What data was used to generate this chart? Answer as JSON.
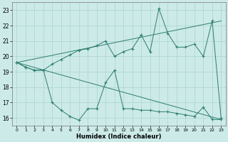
{
  "xlabel": "Humidex (Indice chaleur)",
  "line_color": "#2d7d6e",
  "bg_color": "#cceae8",
  "grid_color": "#aad4d0",
  "series_upper": {
    "x": [
      0,
      1,
      2,
      3,
      4,
      5,
      6,
      7,
      8,
      9,
      10,
      11,
      12,
      13,
      14,
      15,
      16,
      17,
      18,
      19,
      20,
      21,
      22,
      23
    ],
    "y": [
      19.6,
      19.3,
      19.1,
      19.1,
      19.5,
      19.8,
      20.1,
      20.4,
      20.5,
      20.7,
      21.0,
      20.0,
      20.3,
      20.5,
      21.4,
      20.3,
      23.1,
      21.5,
      20.6,
      20.6,
      20.8,
      20.0,
      22.3,
      16.0
    ]
  },
  "series_lower": {
    "x": [
      0,
      1,
      2,
      3,
      4,
      5,
      6,
      7,
      8,
      9,
      10,
      11,
      12,
      13,
      14,
      15,
      16,
      17,
      18,
      19,
      20,
      21,
      22,
      23
    ],
    "y": [
      19.6,
      19.3,
      19.1,
      19.1,
      17.0,
      16.5,
      16.1,
      15.85,
      16.6,
      16.6,
      18.3,
      19.1,
      16.6,
      16.6,
      16.5,
      16.5,
      16.4,
      16.4,
      16.3,
      16.2,
      16.1,
      16.7,
      15.9,
      15.9
    ]
  },
  "diag_upper": {
    "x": [
      0,
      23
    ],
    "y": [
      19.6,
      22.3
    ]
  },
  "diag_lower": {
    "x": [
      0,
      23
    ],
    "y": [
      19.6,
      15.9
    ]
  },
  "ylim": [
    15.5,
    23.5
  ],
  "xlim": [
    -0.5,
    23.5
  ],
  "yticks": [
    16,
    17,
    18,
    19,
    20,
    21,
    22,
    23
  ],
  "xticks": [
    0,
    1,
    2,
    3,
    4,
    5,
    6,
    7,
    8,
    9,
    10,
    11,
    12,
    13,
    14,
    15,
    16,
    17,
    18,
    19,
    20,
    21,
    22,
    23
  ]
}
